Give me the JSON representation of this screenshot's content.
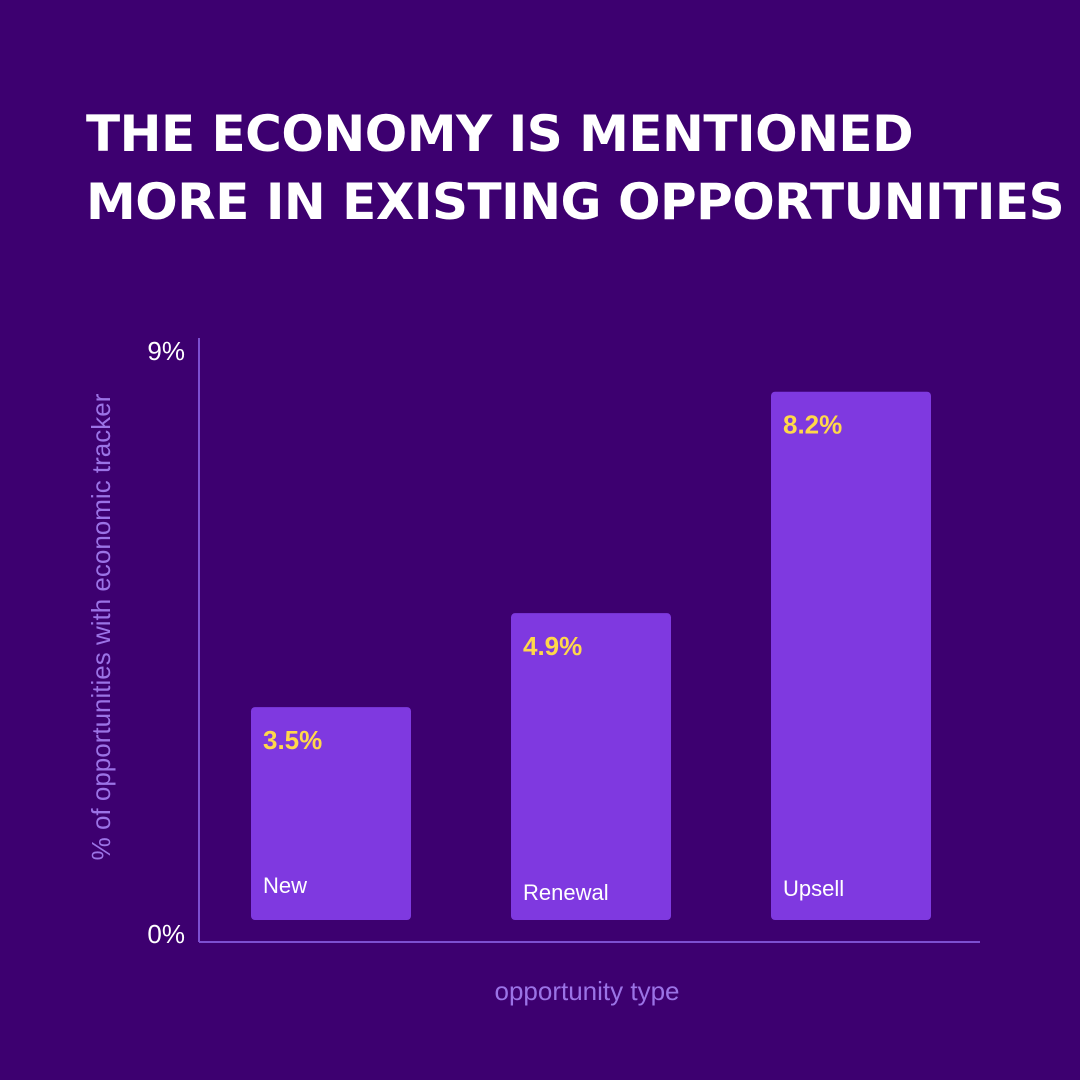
{
  "title_lines": [
    "THE ECONOMY IS MENTIONED",
    "MORE IN EXISTING OPPORTUNITIES"
  ],
  "colors": {
    "background": "#3d0070",
    "bar": "#7f39e0",
    "value_label": "#ffd84a",
    "axis": "#7d4fd0",
    "axis_title": "#9b73e6"
  },
  "chart_data": {
    "type": "bar",
    "categories": [
      "New",
      "Renewal",
      "Upsell"
    ],
    "values": [
      3.5,
      4.9,
      8.2
    ],
    "value_labels": [
      "3.5%",
      "4.9%",
      "8.2%"
    ],
    "xlabel": "opportunity type",
    "ylabel": "% of opportunities with economic tracker",
    "ylim": [
      0,
      9
    ],
    "y_tick_labels": [
      "0%",
      "9%"
    ],
    "grid": false,
    "legend": "none"
  }
}
